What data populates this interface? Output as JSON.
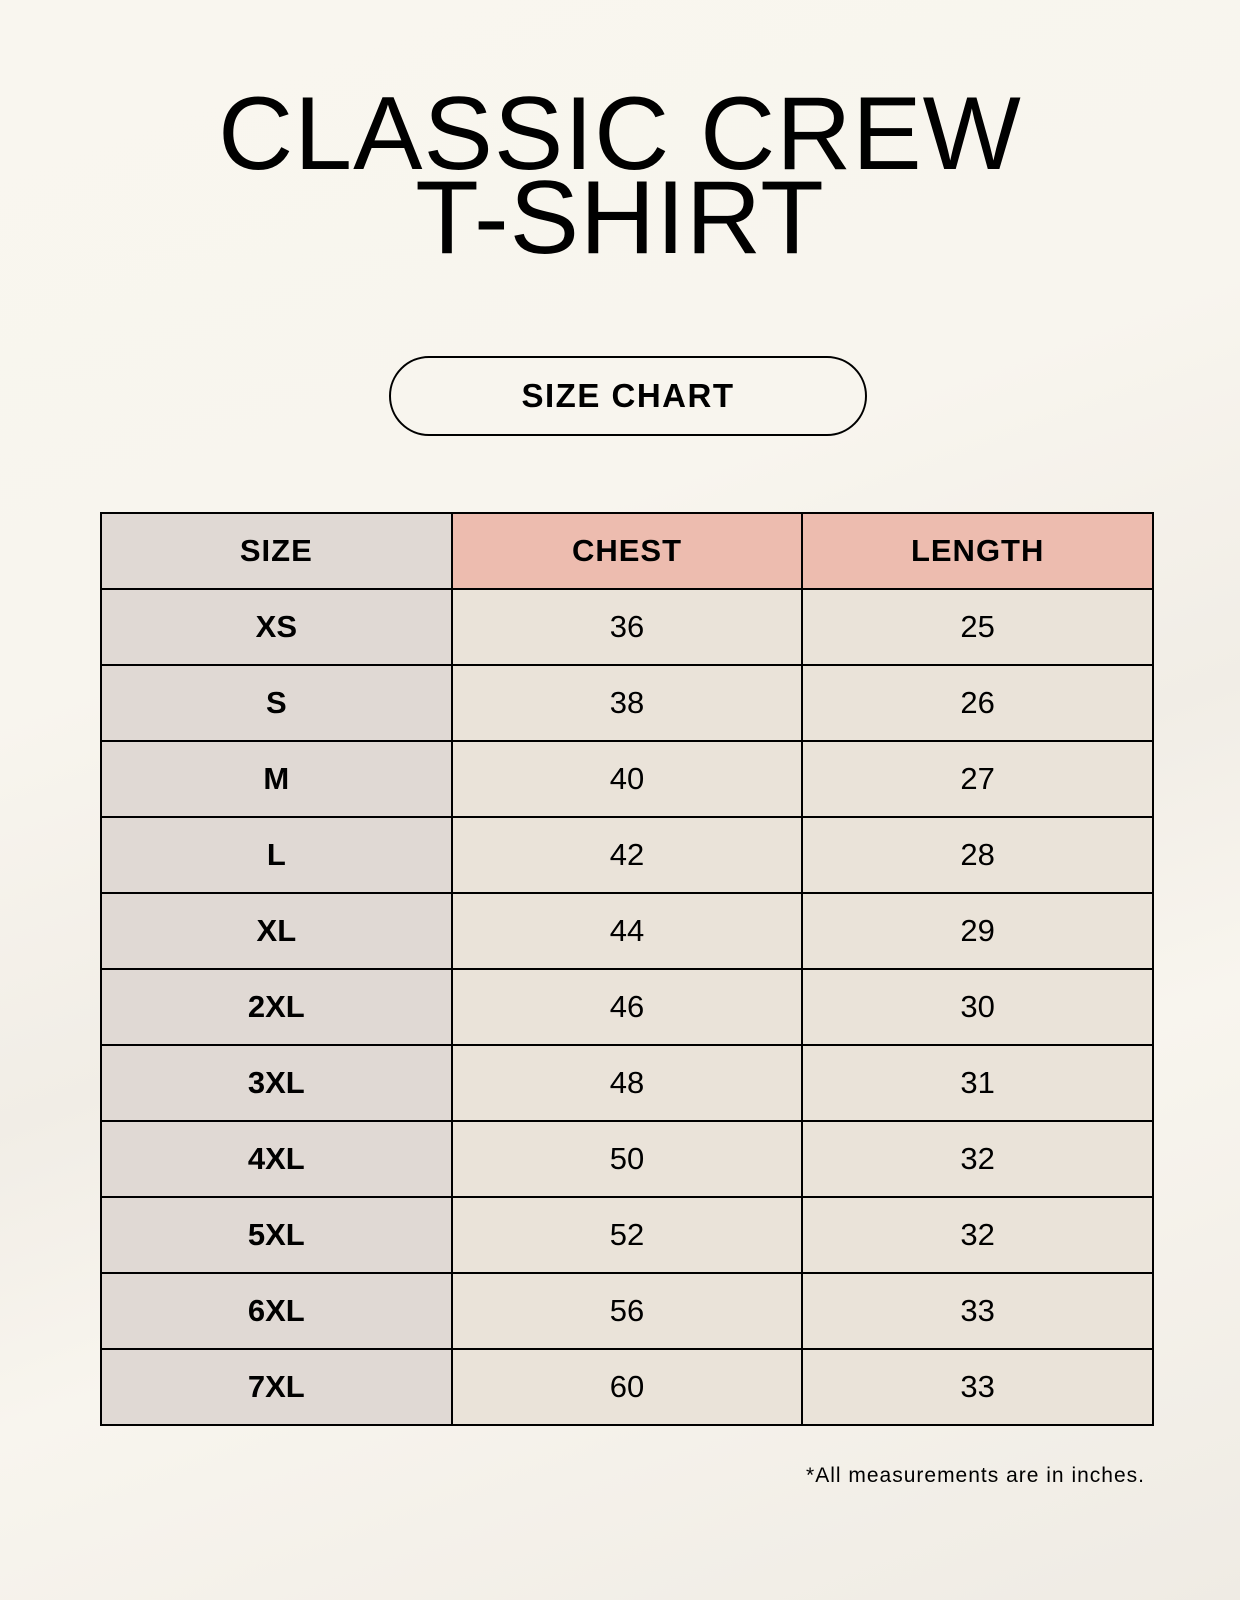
{
  "title_lines": [
    "CLASSIC CREW",
    "T-SHIRT"
  ],
  "badge": "SIZE CHART",
  "table": {
    "headers": [
      "SIZE",
      "CHEST",
      "LENGTH"
    ],
    "rows": [
      [
        "XS",
        "36",
        "25"
      ],
      [
        "S",
        "38",
        "26"
      ],
      [
        "M",
        "40",
        "27"
      ],
      [
        "L",
        "42",
        "28"
      ],
      [
        "XL",
        "44",
        "29"
      ],
      [
        "2XL",
        "46",
        "30"
      ],
      [
        "3XL",
        "48",
        "31"
      ],
      [
        "4XL",
        "50",
        "32"
      ],
      [
        "5XL",
        "52",
        "32"
      ],
      [
        "6XL",
        "56",
        "33"
      ],
      [
        "7XL",
        "60",
        "33"
      ]
    ]
  },
  "footnote": "*All measurements are in inches.",
  "colors": {
    "size_column": "#e0d9d4",
    "header_accent": "#edbcaf",
    "cell": "#eae3d9"
  }
}
